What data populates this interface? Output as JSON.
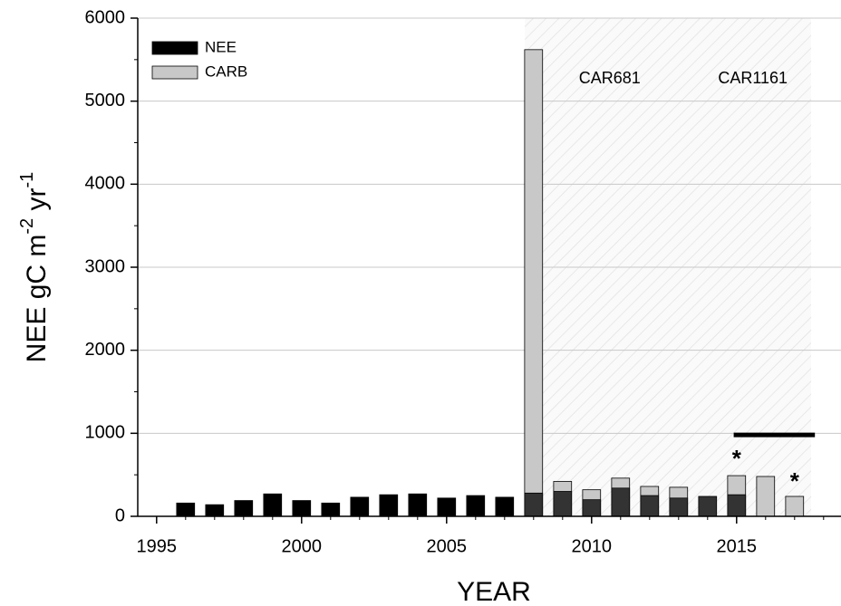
{
  "chart_data": {
    "type": "bar",
    "xlabel": "YEAR",
    "ylabel": [
      "NEE gC m",
      "-2",
      " yr",
      "-1"
    ],
    "x": [
      1996,
      1997,
      1998,
      1999,
      2000,
      2001,
      2002,
      2003,
      2004,
      2005,
      2006,
      2007,
      2008,
      2009,
      2010,
      2011,
      2012,
      2013,
      2014,
      2015,
      2016,
      2017
    ],
    "series": [
      {
        "name": "CARB",
        "color": "#c8c8c8",
        "values": [
          null,
          null,
          null,
          null,
          null,
          null,
          null,
          null,
          null,
          null,
          null,
          null,
          5620,
          420,
          320,
          460,
          360,
          350,
          null,
          490,
          480,
          240
        ]
      },
      {
        "name": "NEE",
        "color": "#000000",
        "values": [
          160,
          140,
          190,
          270,
          190,
          160,
          230,
          260,
          270,
          220,
          250,
          230,
          280,
          300,
          200,
          340,
          250,
          220,
          240,
          260,
          null,
          null
        ]
      }
    ],
    "xlim": [
      1994.35,
      2018.6
    ],
    "xticks": [
      1995,
      2000,
      2005,
      2010,
      2015
    ],
    "xminor": [
      1996,
      1997,
      1998,
      1999,
      2001,
      2002,
      2003,
      2004,
      2006,
      2007,
      2008,
      2009,
      2011,
      2012,
      2013,
      2014,
      2016,
      2017,
      2018
    ],
    "ylim": [
      0,
      6000
    ],
    "yticks": [
      0,
      1000,
      2000,
      3000,
      4000,
      5000,
      6000
    ],
    "yminor": [
      500,
      1500,
      2500,
      3500,
      4500,
      5500
    ],
    "grid": true,
    "legend": "upper left",
    "regions": [
      {
        "label": "CAR681",
        "start": 2007.7,
        "end": 2013.55
      },
      {
        "label": "CAR1161",
        "start": 2013.55,
        "end": 2017.57
      }
    ],
    "bracket": {
      "y": 980,
      "x": [
        2014.9,
        2017.7
      ]
    },
    "annotations": [
      {
        "text": "*",
        "x": 2015,
        "y": 740
      },
      {
        "text": "*",
        "x": 2017,
        "y": 470
      }
    ]
  }
}
